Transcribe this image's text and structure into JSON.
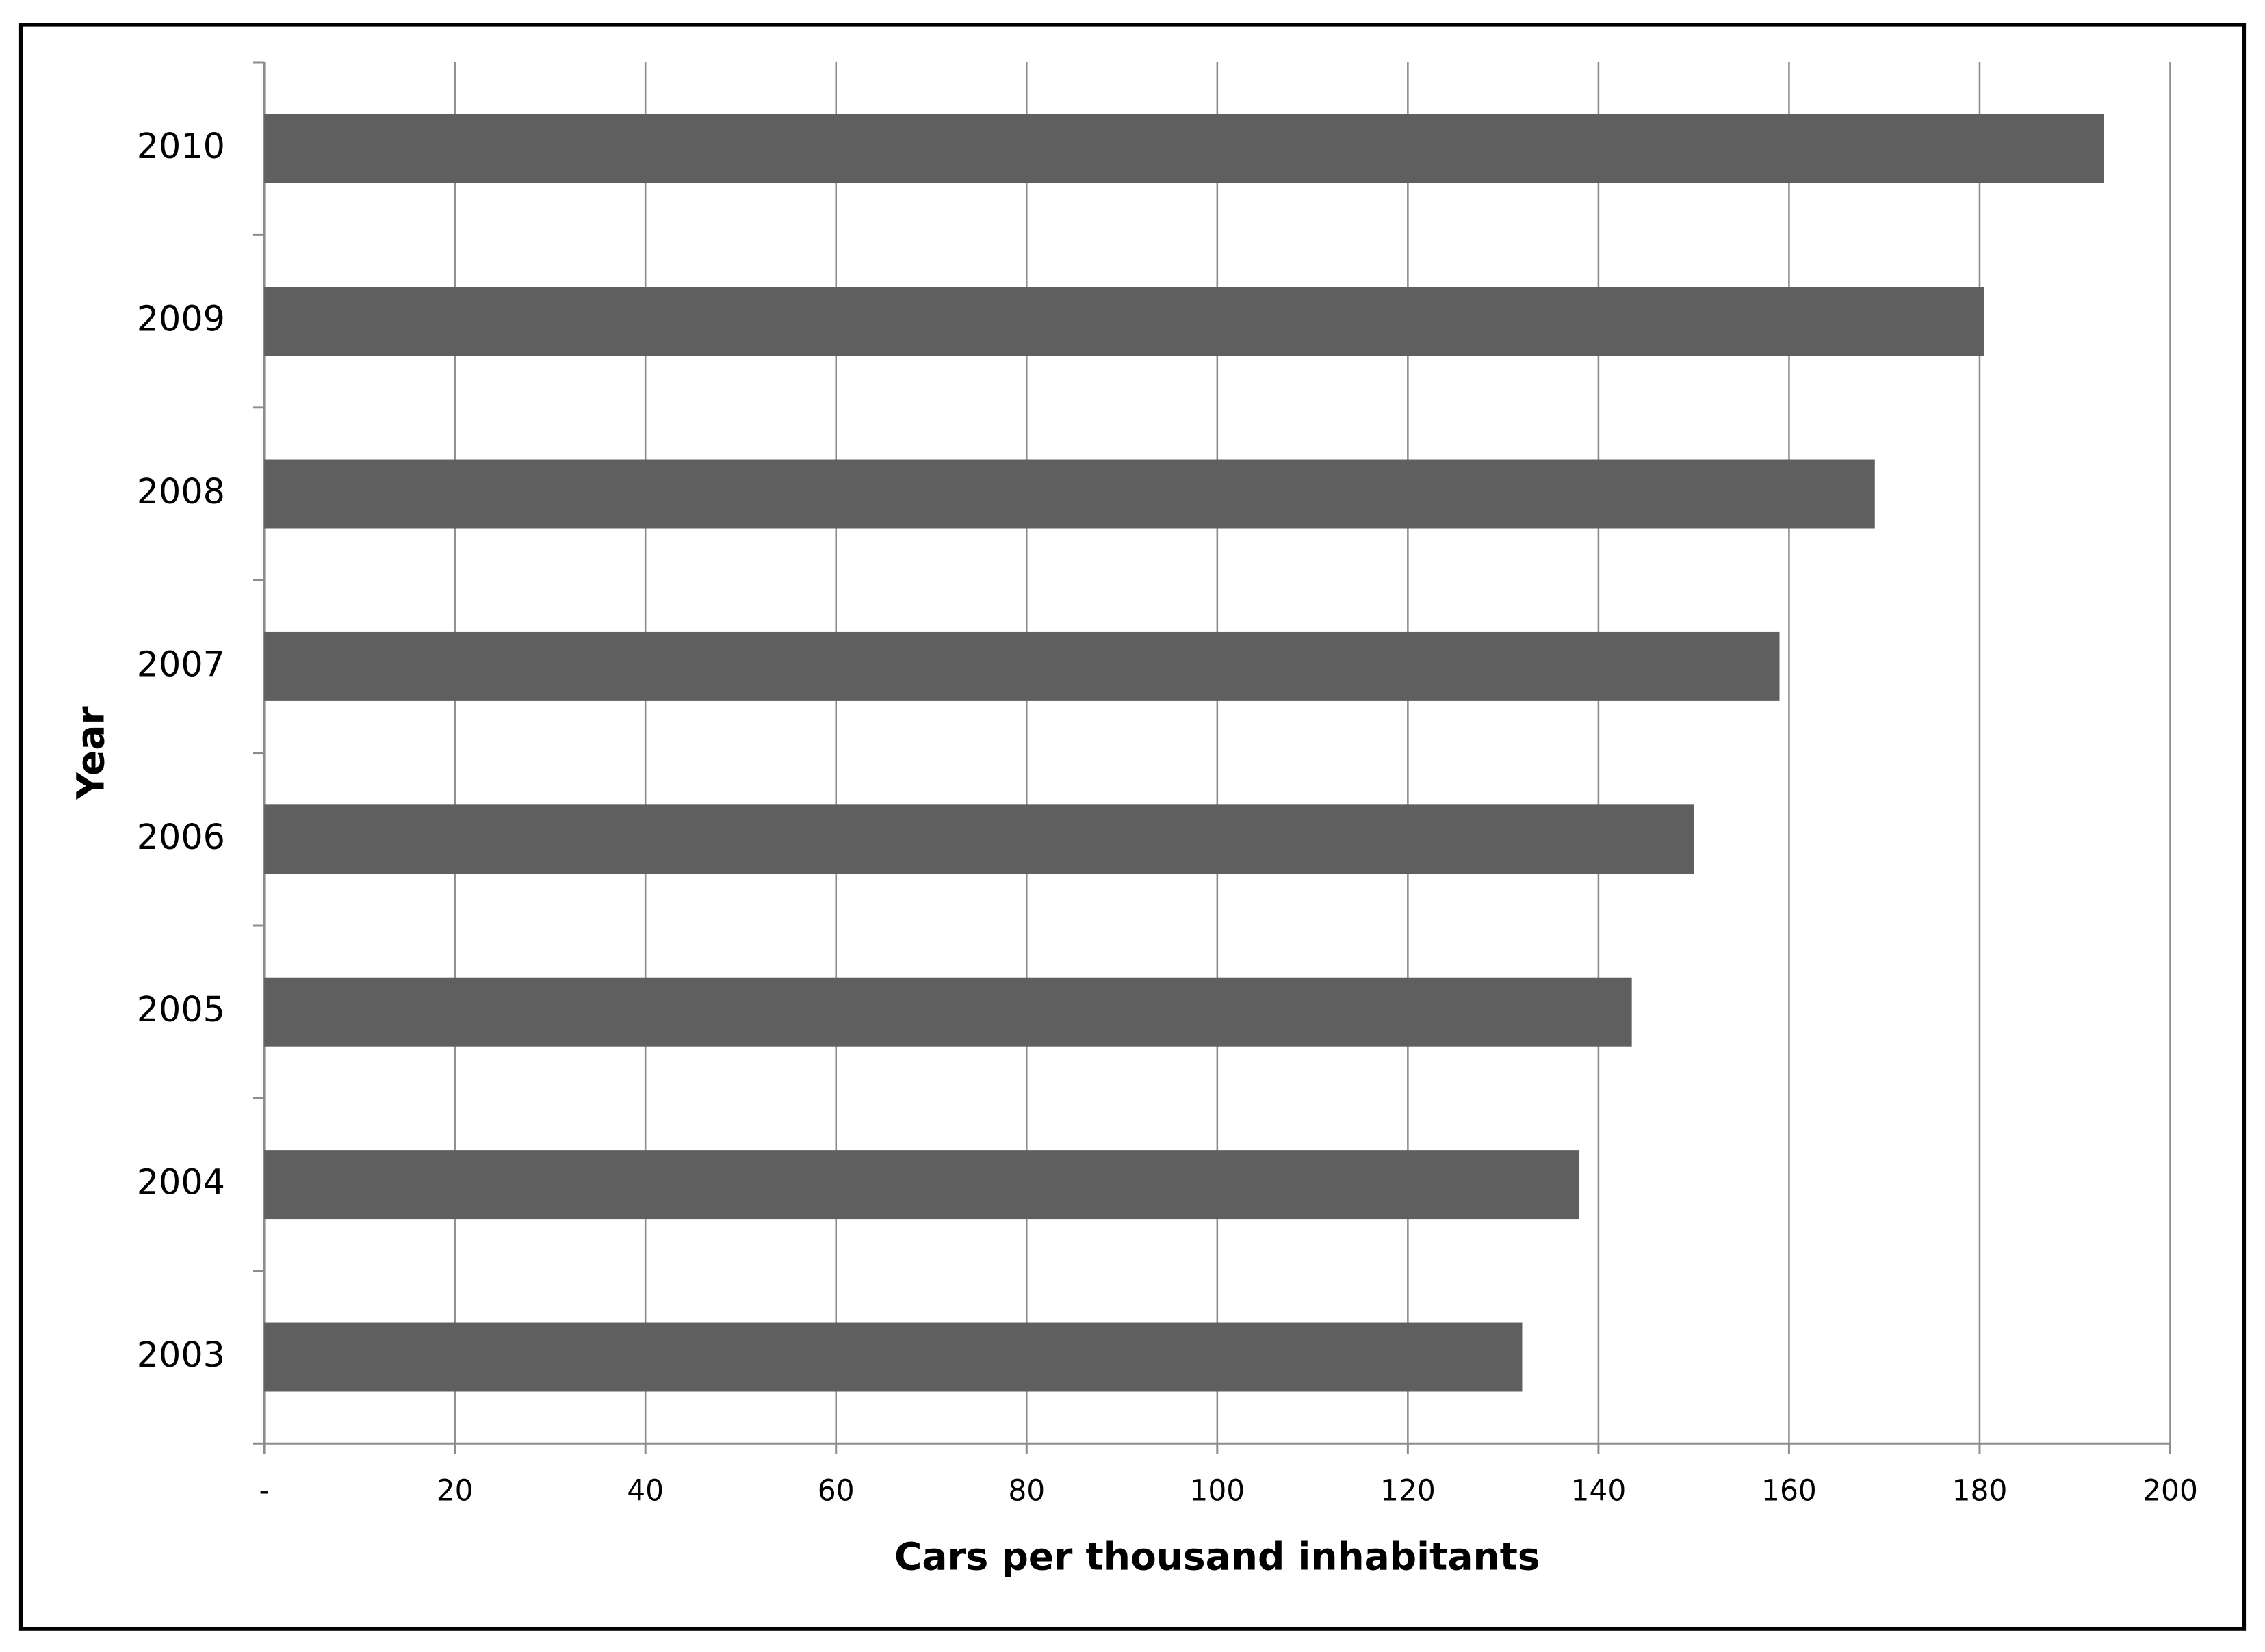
{
  "chart_data": {
    "type": "bar",
    "orientation": "horizontal",
    "x_label": "Cars per thousand  inhabitants",
    "y_label": "Year",
    "categories": [
      "2003",
      "2004",
      "2005",
      "2006",
      "2007",
      "2008",
      "2009",
      "2010"
    ],
    "values": [
      132,
      138,
      143.5,
      150,
      159,
      169,
      180.5,
      193
    ],
    "color": "#5f5f5f",
    "xlim": [
      0,
      200
    ],
    "xticks": [
      {
        "value": 0,
        "label": "-"
      },
      20,
      40,
      60,
      80,
      100,
      120,
      140,
      160,
      180,
      200
    ],
    "grid": true
  }
}
